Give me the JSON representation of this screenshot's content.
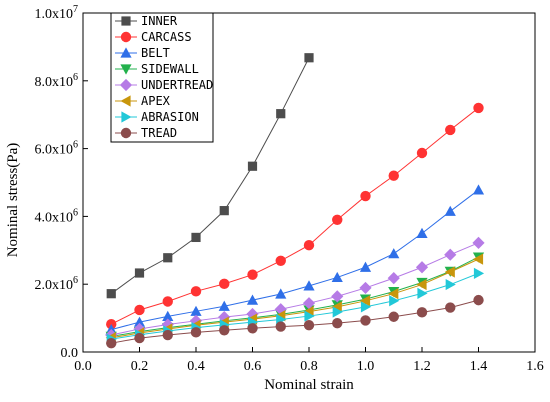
{
  "chart_data": {
    "type": "line",
    "title": "",
    "xlabel": "Nominal strain",
    "ylabel": "Nominal stress(Pa)",
    "xlim": [
      0.0,
      1.6
    ],
    "ylim": [
      0,
      10000000
    ],
    "x_ticks": [
      {
        "value": 0.0,
        "label": "0.0"
      },
      {
        "value": 0.2,
        "label": "0.2"
      },
      {
        "value": 0.4,
        "label": "0.4"
      },
      {
        "value": 0.6,
        "label": "0.6"
      },
      {
        "value": 0.8,
        "label": "0.8"
      },
      {
        "value": 1.0,
        "label": "1.0"
      },
      {
        "value": 1.2,
        "label": "1.2"
      },
      {
        "value": 1.4,
        "label": "1.4"
      },
      {
        "value": 1.6,
        "label": "1.6"
      }
    ],
    "y_ticks": [
      {
        "value": 0,
        "base": "0.0",
        "exp": ""
      },
      {
        "value": 2000000,
        "base": "2.0x10",
        "exp": "6"
      },
      {
        "value": 4000000,
        "base": "4.0x10",
        "exp": "6"
      },
      {
        "value": 6000000,
        "base": "6.0x10",
        "exp": "6"
      },
      {
        "value": 8000000,
        "base": "8.0x10",
        "exp": "6"
      },
      {
        "value": 10000000,
        "base": "1.0x10",
        "exp": "7"
      }
    ],
    "grid": false,
    "legend_position": "top-left",
    "series": [
      {
        "name": "INNER",
        "color": "#4d4d4d",
        "marker": "square",
        "x": [
          0.1,
          0.2,
          0.3,
          0.4,
          0.5,
          0.6,
          0.7,
          0.8
        ],
        "y": [
          1720000,
          2330000,
          2780000,
          3380000,
          4170000,
          5480000,
          7030000,
          8680000
        ]
      },
      {
        "name": "CARCASS",
        "color": "#ff3333",
        "marker": "circle",
        "x": [
          0.1,
          0.2,
          0.3,
          0.4,
          0.5,
          0.6,
          0.7,
          0.8,
          0.9,
          1.0,
          1.1,
          1.2,
          1.3,
          1.4
        ],
        "y": [
          820000,
          1240000,
          1490000,
          1790000,
          2010000,
          2280000,
          2690000,
          3150000,
          3900000,
          4600000,
          5200000,
          5870000,
          6550000,
          7200000
        ]
      },
      {
        "name": "BELT",
        "color": "#2f6fe8",
        "marker": "triangle-up",
        "x": [
          0.1,
          0.2,
          0.3,
          0.4,
          0.5,
          0.6,
          0.7,
          0.8,
          0.9,
          1.0,
          1.1,
          1.2,
          1.3,
          1.4
        ],
        "y": [
          660000,
          880000,
          1050000,
          1200000,
          1350000,
          1530000,
          1710000,
          1950000,
          2200000,
          2500000,
          2900000,
          3500000,
          4150000,
          4780000
        ]
      },
      {
        "name": "SIDEWALL",
        "color": "#22b14c",
        "marker": "triangle-down",
        "x": [
          0.1,
          0.2,
          0.3,
          0.4,
          0.5,
          0.6,
          0.7,
          0.8,
          0.9,
          1.0,
          1.1,
          1.2,
          1.3,
          1.4
        ],
        "y": [
          460000,
          600000,
          720000,
          820000,
          920000,
          1010000,
          1110000,
          1240000,
          1390000,
          1560000,
          1780000,
          2050000,
          2380000,
          2800000
        ]
      },
      {
        "name": "UNDERTREAD",
        "color": "#b67be6",
        "marker": "diamond",
        "x": [
          0.1,
          0.2,
          0.3,
          0.4,
          0.5,
          0.6,
          0.7,
          0.8,
          0.9,
          1.0,
          1.1,
          1.2,
          1.3,
          1.4
        ],
        "y": [
          500000,
          680000,
          810000,
          920000,
          1030000,
          1120000,
          1260000,
          1440000,
          1640000,
          1890000,
          2180000,
          2500000,
          2870000,
          3220000
        ]
      },
      {
        "name": "APEX",
        "color": "#c8960c",
        "marker": "triangle-left",
        "x": [
          0.1,
          0.2,
          0.3,
          0.4,
          0.5,
          0.6,
          0.7,
          0.8,
          0.9,
          1.0,
          1.1,
          1.2,
          1.3,
          1.4
        ],
        "y": [
          420000,
          560000,
          680000,
          790000,
          880000,
          970000,
          1070000,
          1190000,
          1330000,
          1510000,
          1720000,
          1990000,
          2360000,
          2740000
        ]
      },
      {
        "name": "ABRASION",
        "color": "#22c8d8",
        "marker": "triangle-right",
        "x": [
          0.1,
          0.2,
          0.3,
          0.4,
          0.5,
          0.6,
          0.7,
          0.8,
          0.9,
          1.0,
          1.1,
          1.2,
          1.3,
          1.4
        ],
        "y": [
          380000,
          510000,
          620000,
          720000,
          800000,
          880000,
          960000,
          1060000,
          1180000,
          1330000,
          1510000,
          1730000,
          1990000,
          2320000
        ]
      },
      {
        "name": "TREAD",
        "color": "#8b4c4c",
        "marker": "circle",
        "x": [
          0.1,
          0.2,
          0.3,
          0.4,
          0.5,
          0.6,
          0.7,
          0.8,
          0.9,
          1.0,
          1.1,
          1.2,
          1.3,
          1.4
        ],
        "y": [
          260000,
          410000,
          500000,
          580000,
          640000,
          700000,
          750000,
          790000,
          850000,
          930000,
          1040000,
          1170000,
          1310000,
          1530000
        ]
      }
    ]
  }
}
